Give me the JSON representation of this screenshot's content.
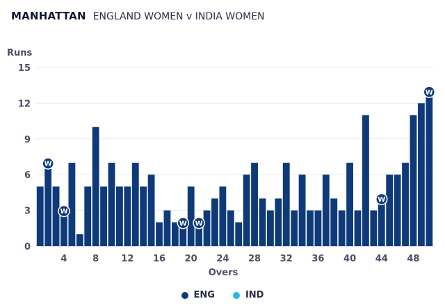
{
  "header": {
    "title": "MANHATTAN",
    "subtitle": "ENGLAND WOMEN v INDIA WOMEN"
  },
  "chart_data": {
    "type": "bar",
    "ylabel": "Runs",
    "xlabel": "Overs",
    "ylim": [
      0,
      15
    ],
    "yticks": [
      0,
      3,
      6,
      9,
      12,
      15
    ],
    "xticks": [
      4,
      8,
      12,
      16,
      20,
      24,
      28,
      32,
      36,
      40,
      44,
      48
    ],
    "grid": true,
    "legend_position": "bottom",
    "wicket_marker_label": "W",
    "series": [
      {
        "name": "ENG",
        "color": "#0e3a7a",
        "overs": [
          1,
          2,
          3,
          4,
          5,
          6,
          7,
          8,
          9,
          10,
          11,
          12,
          13,
          14,
          15,
          16,
          17,
          18,
          19,
          20,
          21,
          22,
          23,
          24,
          25,
          26,
          27,
          28,
          29,
          30,
          31,
          32,
          33,
          34,
          35,
          36,
          37,
          38,
          39,
          40,
          41,
          42,
          43,
          44,
          45,
          46,
          47,
          48,
          49,
          50
        ],
        "values": [
          5,
          7,
          5,
          3,
          7,
          1,
          5,
          10,
          5,
          7,
          5,
          5,
          7,
          5,
          6,
          2,
          3,
          2,
          2,
          5,
          2,
          3,
          4,
          5,
          3,
          2,
          6,
          7,
          4,
          3,
          4,
          7,
          3,
          6,
          3,
          3,
          6,
          4,
          3,
          7,
          3,
          11,
          3,
          4,
          6,
          6,
          7,
          11,
          12,
          13
        ],
        "wickets": [
          2,
          4,
          19,
          21,
          44,
          50
        ]
      },
      {
        "name": "IND",
        "color": "#2bb5ea",
        "overs": [],
        "values": [],
        "wickets": []
      }
    ]
  }
}
